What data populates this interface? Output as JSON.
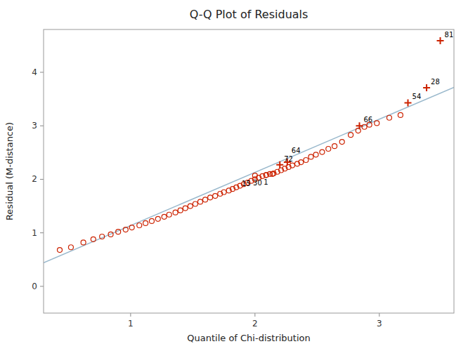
{
  "chart_data": {
    "type": "scatter",
    "title": "Q-Q Plot of Residuals",
    "x_label": "Quantile of Chi-distribution",
    "y_label": "Residual (M-distance)",
    "xlim": [
      0.3,
      3.6
    ],
    "ylim": [
      -0.5,
      4.8
    ],
    "xticks": [
      1,
      2,
      3
    ],
    "yticks": [
      0,
      1,
      2,
      3,
      4
    ],
    "grid": false,
    "reference_line": {
      "color": "#99b8cc",
      "x": [
        0.3,
        3.6
      ],
      "values": [
        0.44,
        3.72
      ]
    },
    "series": [
      {
        "marker": "circle",
        "color": "#cc2200",
        "x": [
          0.43,
          0.52,
          0.62,
          0.7,
          0.77,
          0.84,
          0.9,
          0.96,
          1.01,
          1.07,
          1.12,
          1.17,
          1.22,
          1.27,
          1.31,
          1.36,
          1.4,
          1.44,
          1.48,
          1.52,
          1.56,
          1.6,
          1.64,
          1.68,
          1.72,
          1.75,
          1.79,
          1.82,
          1.85,
          1.88,
          1.91,
          1.94,
          1.97,
          2.0,
          2.03,
          2.06,
          2.09,
          2.12,
          2.15,
          2.18,
          2.21,
          2.24,
          2.27,
          2.3,
          2.34,
          2.37,
          2.41,
          2.45,
          2.49,
          2.54,
          2.59,
          2.64,
          2.7,
          2.77,
          2.83,
          2.88,
          2.92,
          2.98,
          3.08,
          3.17
        ],
        "values": [
          0.68,
          0.73,
          0.82,
          0.88,
          0.93,
          0.97,
          1.02,
          1.06,
          1.1,
          1.14,
          1.18,
          1.22,
          1.26,
          1.3,
          1.34,
          1.38,
          1.42,
          1.46,
          1.5,
          1.54,
          1.58,
          1.62,
          1.66,
          1.69,
          1.73,
          1.76,
          1.79,
          1.82,
          1.85,
          1.88,
          1.91,
          1.94,
          1.97,
          2.0,
          2.03,
          2.06,
          2.08,
          2.1,
          2.11,
          2.14,
          2.17,
          2.2,
          2.23,
          2.26,
          2.29,
          2.32,
          2.36,
          2.42,
          2.46,
          2.51,
          2.57,
          2.62,
          2.7,
          2.83,
          2.91,
          2.98,
          3.02,
          3.05,
          3.15,
          3.2
        ]
      },
      {
        "marker": "circle",
        "color": "#cc2200",
        "x": [
          2.0,
          2.09,
          2.14
        ],
        "values": [
          2.07,
          2.08,
          2.1
        ],
        "point_labels": [
          "15",
          "30",
          "1"
        ]
      },
      {
        "marker": "cross",
        "color": "#cc2200",
        "x": [
          2.2,
          2.26,
          2.84,
          3.23,
          3.38,
          3.49
        ],
        "values": [
          2.27,
          2.32,
          3.0,
          3.43,
          3.71,
          4.59
        ],
        "point_labels": [
          "72",
          "64",
          "66",
          "54",
          "28",
          "81"
        ]
      }
    ]
  }
}
